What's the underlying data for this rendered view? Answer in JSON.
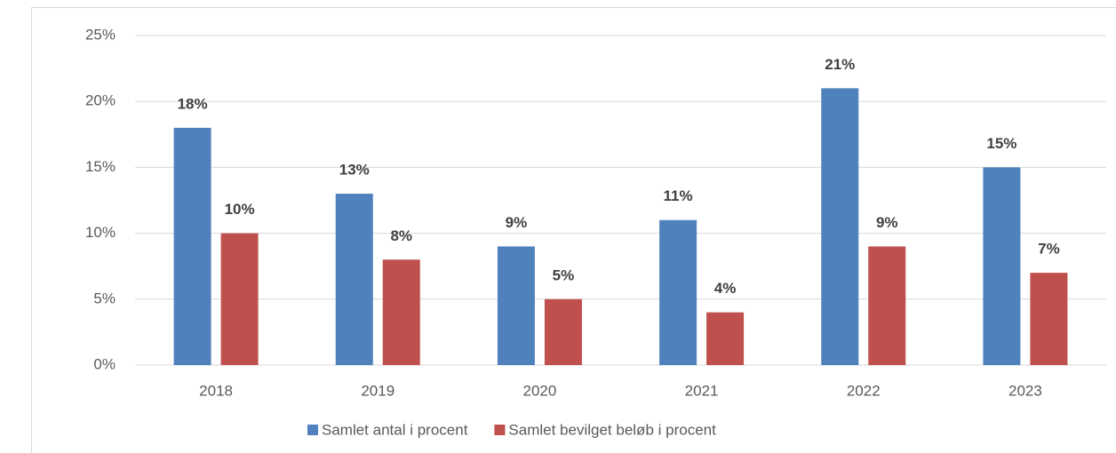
{
  "chart_data": {
    "type": "bar",
    "categories": [
      "2018",
      "2019",
      "2020",
      "2021",
      "2022",
      "2023"
    ],
    "series": [
      {
        "name": "Samlet antal i procent",
        "color": "#4f81bd",
        "values": [
          18,
          13,
          9,
          11,
          21,
          15
        ],
        "value_labels": [
          "18%",
          "13%",
          "9%",
          "11%",
          "21%",
          "15%"
        ]
      },
      {
        "name": "Samlet bevilget beløb i procent",
        "color": "#c0504d",
        "values": [
          10,
          8,
          5,
          4,
          9,
          7
        ],
        "value_labels": [
          "10%",
          "8%",
          "5%",
          "4%",
          "9%",
          "7%"
        ]
      }
    ],
    "ylim": [
      0,
      25
    ],
    "yticks": [
      {
        "value": 0,
        "label": "0%"
      },
      {
        "value": 5,
        "label": "5%"
      },
      {
        "value": 10,
        "label": "10%"
      },
      {
        "value": 15,
        "label": "15%"
      },
      {
        "value": 20,
        "label": "20%"
      },
      {
        "value": 25,
        "label": "25%"
      }
    ],
    "grid": true,
    "legend": "bottom"
  }
}
